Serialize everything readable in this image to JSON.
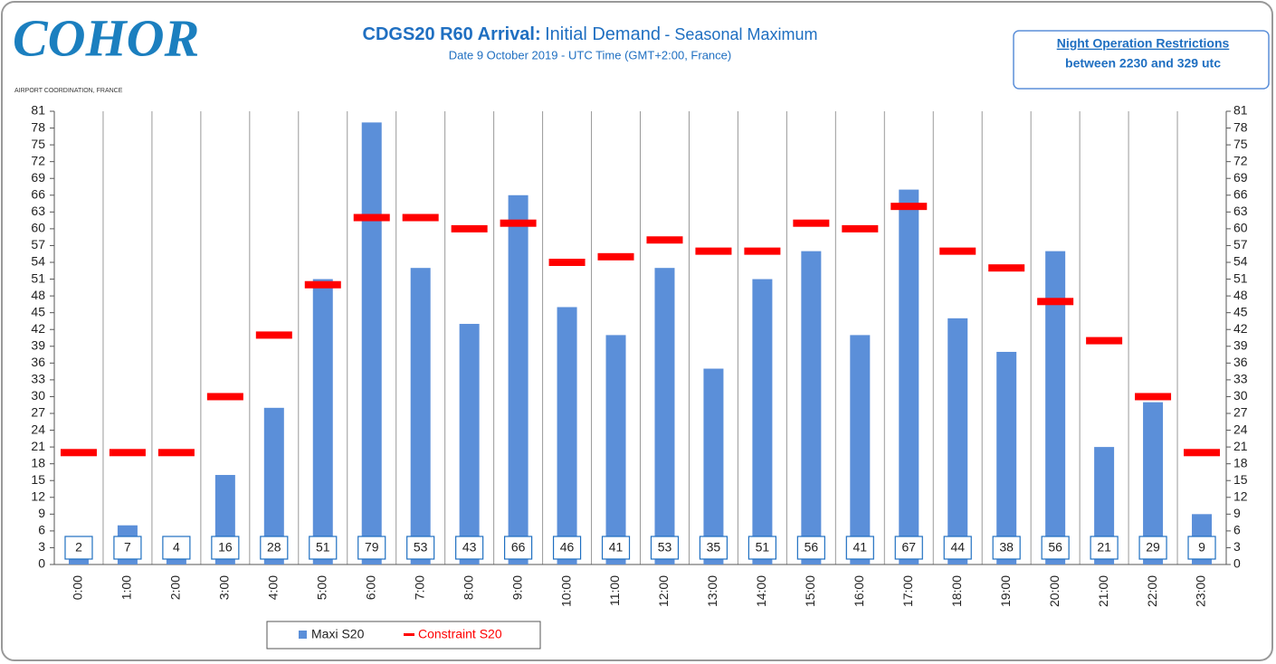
{
  "chart_data": {
    "type": "bar",
    "logo": "COHOR",
    "logo_caption": "AIRPORT COORDINATION, FRANCE",
    "title": [
      "CDGS20 R60 Arrival:",
      "Initial Demand",
      "- Seasonal Maximum"
    ],
    "subtitle": "Date 9 October 2019 - UTC Time (GMT+2:00, France)",
    "note": [
      "Night Operation Restrictions",
      "between 2230 and 329 utc"
    ],
    "categories": [
      "0:00",
      "1:00",
      "2:00",
      "3:00",
      "4:00",
      "5:00",
      "6:00",
      "7:00",
      "8:00",
      "9:00",
      "10:00",
      "11:00",
      "12:00",
      "13:00",
      "14:00",
      "15:00",
      "16:00",
      "17:00",
      "18:00",
      "19:00",
      "20:00",
      "21:00",
      "22:00",
      "23:00"
    ],
    "series": [
      {
        "name": "Maxi S20",
        "color": "#5b8fd9",
        "marker": "bar",
        "values": [
          2,
          7,
          4,
          16,
          28,
          51,
          79,
          53,
          43,
          66,
          46,
          41,
          53,
          35,
          51,
          56,
          41,
          67,
          44,
          38,
          56,
          21,
          29,
          9
        ]
      },
      {
        "name": "Constraint S20",
        "color": "#ff0000",
        "marker": "dash",
        "values": [
          20,
          20,
          20,
          30,
          41,
          50,
          62,
          62,
          60,
          61,
          54,
          55,
          58,
          56,
          56,
          61,
          60,
          64,
          56,
          53,
          47,
          40,
          30,
          20
        ]
      }
    ],
    "ylim": [
      0,
      81
    ],
    "yticks": [
      0,
      3,
      6,
      9,
      12,
      15,
      18,
      21,
      24,
      27,
      30,
      33,
      36,
      39,
      42,
      45,
      48,
      51,
      54,
      57,
      60,
      63,
      66,
      69,
      72,
      75,
      78,
      81
    ],
    "legend": "bottom"
  }
}
